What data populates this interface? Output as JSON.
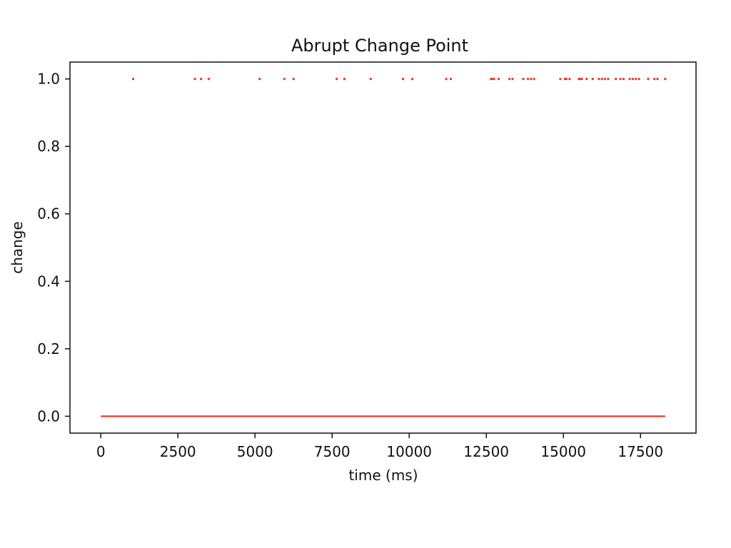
{
  "chart_data": {
    "type": "scatter",
    "title": "Abrupt Change Point",
    "xlabel": "time (ms)",
    "ylabel": "change",
    "xlim": [
      -1000,
      19300
    ],
    "ylim": [
      -0.05,
      1.05
    ],
    "xticks": [
      0,
      2500,
      5000,
      7500,
      10000,
      12500,
      15000,
      17500
    ],
    "xtick_labels": [
      "0",
      "2500",
      "5000",
      "7500",
      "10000",
      "12500",
      "15000",
      "17500"
    ],
    "yticks": [
      0.0,
      0.2,
      0.4,
      0.6,
      0.8,
      1.0
    ],
    "ytick_labels": [
      "0.0",
      "0.2",
      "0.4",
      "0.6",
      "0.8",
      "1.0"
    ],
    "grid": false,
    "color": "#e8382f",
    "series": [
      {
        "values_description_free": true,
        "baseline": {
          "y": 0.0,
          "x_start": 0,
          "x_end": 18300
        },
        "change_points": {
          "y": 1.0,
          "x": [
            1050,
            3050,
            3250,
            3500,
            5150,
            5950,
            6250,
            7650,
            7900,
            8750,
            9800,
            10100,
            11200,
            11350,
            12650,
            12700,
            12750,
            12900,
            13250,
            13350,
            13700,
            13850,
            13950,
            14050,
            14900,
            15050,
            15100,
            15200,
            15500,
            15550,
            15600,
            15750,
            15950,
            16150,
            16250,
            16350,
            16450,
            16700,
            16850,
            16950,
            17150,
            17250,
            17350,
            17450,
            17750,
            17950,
            18050,
            18300
          ]
        }
      }
    ]
  }
}
